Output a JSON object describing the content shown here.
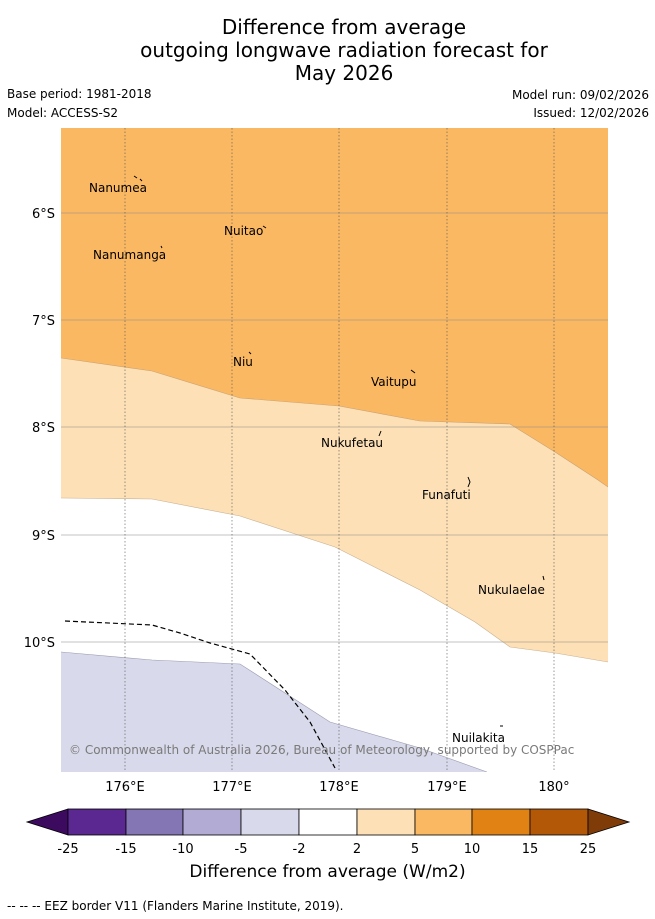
{
  "title": {
    "line1": "Difference from average",
    "line2": "outgoing longwave radiation forecast for",
    "line3": "May 2026"
  },
  "meta": {
    "base_period": "Base period: 1981-2018",
    "model": "Model: ACCESS-S2",
    "model_run": "Model run: 09/02/2026",
    "issued": "Issued: 12/02/2026"
  },
  "map": {
    "lat_labels": [
      "6°S",
      "7°S",
      "8°S",
      "9°S",
      "10°S"
    ],
    "lon_labels": [
      "176°E",
      "177°E",
      "178°E",
      "179°E",
      "180°"
    ],
    "places": [
      "Nanumea",
      "Nuitao",
      "Nanumanga",
      "Niu",
      "Vaitupu",
      "Nukufetau",
      "Funafuti",
      "Nukulaelae",
      "Nuilakita"
    ],
    "copyright": "© Commonwealth of Australia 2026, Bureau of Meteorology, supported by COSPPac",
    "region_colors": {
      "band_10_15": "#fbb862",
      "band_5_10": "#fde0b6",
      "band_-2_2": "#ffffff",
      "band_-5_-2": "#d8d9ea"
    }
  },
  "colorbar": {
    "title": "Difference from average (W/m2)",
    "ticks": [
      "-25",
      "-15",
      "-10",
      "-5",
      "-2",
      "2",
      "5",
      "10",
      "15",
      "25"
    ],
    "colors": [
      "#3c0a5f",
      "#5a2890",
      "#8476b4",
      "#b2abd3",
      "#d8d9ea",
      "#ffffff",
      "#fde0b6",
      "#fbb862",
      "#e08214",
      "#b35806",
      "#7f3b08"
    ]
  },
  "legend": {
    "eez_line": "--  --  -- EEZ border V11 (Flanders Marine Institute, 2019)."
  }
}
